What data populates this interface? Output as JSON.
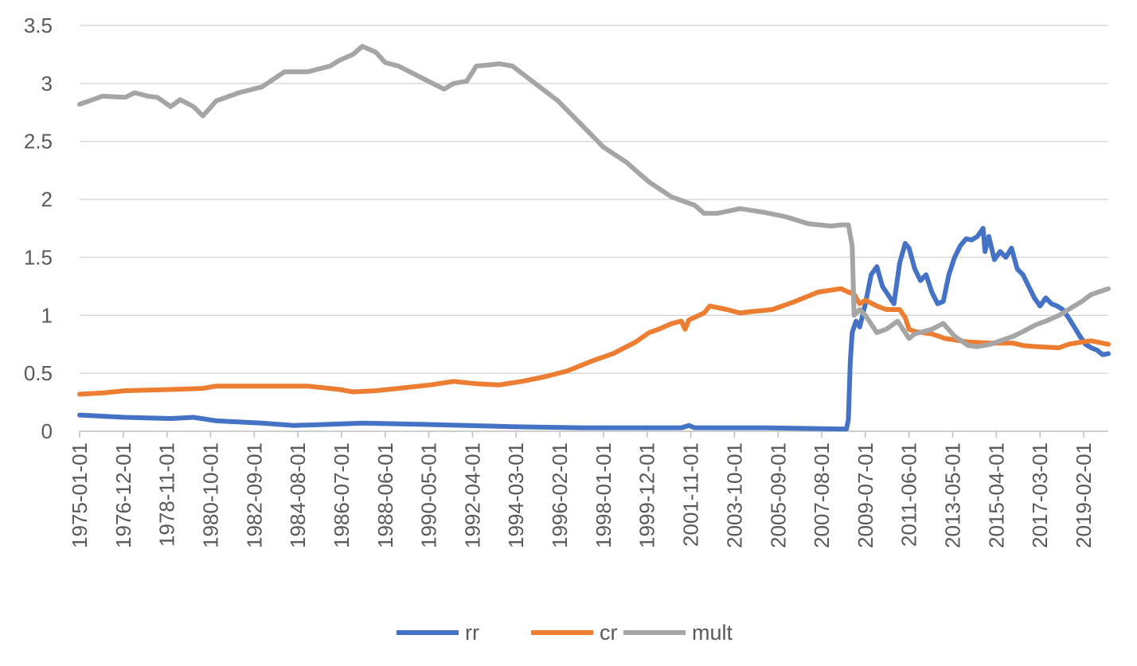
{
  "chart_data": {
    "type": "line",
    "title": "",
    "xlabel": "",
    "ylabel": "",
    "ylim": [
      0,
      3.5
    ],
    "xlim": [
      "1975-01-01",
      "2020-03-01"
    ],
    "y_ticks": [
      "0",
      "0.5",
      "1",
      "1.5",
      "2",
      "2.5",
      "3",
      "3.5"
    ],
    "x_ticks": [
      "1975-01-01",
      "1976-12-01",
      "1978-11-01",
      "1980-10-01",
      "1982-09-01",
      "1984-08-01",
      "1986-07-01",
      "1988-06-01",
      "1990-05-01",
      "1992-04-01",
      "1994-03-01",
      "1996-02-01",
      "1998-01-01",
      "1999-12-01",
      "2001-11-01",
      "2003-10-01",
      "2005-09-01",
      "2007-08-01",
      "2009-07-01",
      "2011-06-01",
      "2013-05-01",
      "2015-04-01",
      "2017-03-01",
      "2019-02-01"
    ],
    "grid": "horizontal",
    "legend_position": "bottom",
    "series": [
      {
        "name": "rr",
        "color": "#4472C4",
        "points": [
          [
            "1975-01-01",
            0.14
          ],
          [
            "1977-01-01",
            0.12
          ],
          [
            "1979-01-01",
            0.11
          ],
          [
            "1980-01-01",
            0.12
          ],
          [
            "1981-01-01",
            0.09
          ],
          [
            "1983-01-01",
            0.07
          ],
          [
            "1984-06-01",
            0.05
          ],
          [
            "1986-01-01",
            0.06
          ],
          [
            "1987-06-01",
            0.07
          ],
          [
            "1990-01-01",
            0.06
          ],
          [
            "1992-01-01",
            0.05
          ],
          [
            "1994-01-01",
            0.04
          ],
          [
            "1997-01-01",
            0.03
          ],
          [
            "2001-06-01",
            0.03
          ],
          [
            "2001-10-01",
            0.05
          ],
          [
            "2002-01-01",
            0.03
          ],
          [
            "2005-01-01",
            0.03
          ],
          [
            "2008-06-01",
            0.02
          ],
          [
            "2008-09-01",
            0.02
          ],
          [
            "2008-10-01",
            0.1
          ],
          [
            "2008-11-01",
            0.6
          ],
          [
            "2008-12-01",
            0.85
          ],
          [
            "2009-02-01",
            0.95
          ],
          [
            "2009-04-01",
            0.9
          ],
          [
            "2009-07-01",
            1.1
          ],
          [
            "2009-10-01",
            1.35
          ],
          [
            "2010-01-01",
            1.42
          ],
          [
            "2010-04-01",
            1.25
          ],
          [
            "2010-08-01",
            1.15
          ],
          [
            "2010-10-01",
            1.1
          ],
          [
            "2011-01-01",
            1.45
          ],
          [
            "2011-04-01",
            1.62
          ],
          [
            "2011-06-01",
            1.58
          ],
          [
            "2011-09-01",
            1.4
          ],
          [
            "2011-12-01",
            1.3
          ],
          [
            "2012-03-01",
            1.35
          ],
          [
            "2012-06-01",
            1.2
          ],
          [
            "2012-09-01",
            1.1
          ],
          [
            "2012-12-01",
            1.12
          ],
          [
            "2013-03-01",
            1.35
          ],
          [
            "2013-06-01",
            1.5
          ],
          [
            "2013-09-01",
            1.6
          ],
          [
            "2013-12-01",
            1.66
          ],
          [
            "2014-03-01",
            1.65
          ],
          [
            "2014-06-01",
            1.68
          ],
          [
            "2014-09-01",
            1.75
          ],
          [
            "2014-10-01",
            1.55
          ],
          [
            "2014-12-01",
            1.68
          ],
          [
            "2015-03-01",
            1.48
          ],
          [
            "2015-06-01",
            1.55
          ],
          [
            "2015-09-01",
            1.5
          ],
          [
            "2015-12-01",
            1.58
          ],
          [
            "2016-03-01",
            1.4
          ],
          [
            "2016-06-01",
            1.35
          ],
          [
            "2016-09-01",
            1.25
          ],
          [
            "2016-12-01",
            1.15
          ],
          [
            "2017-03-01",
            1.08
          ],
          [
            "2017-06-01",
            1.15
          ],
          [
            "2017-09-01",
            1.1
          ],
          [
            "2017-12-01",
            1.08
          ],
          [
            "2018-03-01",
            1.05
          ],
          [
            "2018-06-01",
            0.98
          ],
          [
            "2018-09-01",
            0.9
          ],
          [
            "2018-12-01",
            0.82
          ],
          [
            "2019-03-01",
            0.75
          ],
          [
            "2019-06-01",
            0.72
          ],
          [
            "2019-09-01",
            0.7
          ],
          [
            "2019-12-01",
            0.66
          ],
          [
            "2020-03-01",
            0.67
          ]
        ]
      },
      {
        "name": "cr",
        "color": "#ED7D31",
        "points": [
          [
            "1975-01-01",
            0.32
          ],
          [
            "1976-01-01",
            0.33
          ],
          [
            "1977-01-01",
            0.35
          ],
          [
            "1979-01-01",
            0.36
          ],
          [
            "1980-06-01",
            0.37
          ],
          [
            "1981-01-01",
            0.39
          ],
          [
            "1983-01-01",
            0.39
          ],
          [
            "1985-01-01",
            0.39
          ],
          [
            "1986-06-01",
            0.36
          ],
          [
            "1987-01-01",
            0.34
          ],
          [
            "1988-01-01",
            0.35
          ],
          [
            "1989-01-01",
            0.37
          ],
          [
            "1990-06-01",
            0.4
          ],
          [
            "1991-06-01",
            0.43
          ],
          [
            "1992-06-01",
            0.41
          ],
          [
            "1993-06-01",
            0.4
          ],
          [
            "1994-06-01",
            0.43
          ],
          [
            "1995-06-01",
            0.47
          ],
          [
            "1996-06-01",
            0.52
          ],
          [
            "1997-06-01",
            0.6
          ],
          [
            "1998-06-01",
            0.67
          ],
          [
            "1999-06-01",
            0.77
          ],
          [
            "2000-01-01",
            0.85
          ],
          [
            "2000-06-01",
            0.88
          ],
          [
            "2001-01-01",
            0.93
          ],
          [
            "2001-06-01",
            0.95
          ],
          [
            "2001-08-01",
            0.88
          ],
          [
            "2001-10-01",
            0.96
          ],
          [
            "2002-06-01",
            1.02
          ],
          [
            "2002-09-01",
            1.08
          ],
          [
            "2003-06-01",
            1.05
          ],
          [
            "2004-01-01",
            1.02
          ],
          [
            "2004-06-01",
            1.03
          ],
          [
            "2005-06-01",
            1.05
          ],
          [
            "2006-06-01",
            1.12
          ],
          [
            "2007-06-01",
            1.2
          ],
          [
            "2008-06-01",
            1.23
          ],
          [
            "2009-01-01",
            1.18
          ],
          [
            "2009-04-01",
            1.1
          ],
          [
            "2009-07-01",
            1.13
          ],
          [
            "2010-01-01",
            1.08
          ],
          [
            "2010-06-01",
            1.05
          ],
          [
            "2011-01-01",
            1.05
          ],
          [
            "2011-04-01",
            0.98
          ],
          [
            "2011-06-01",
            0.88
          ],
          [
            "2011-09-01",
            0.86
          ],
          [
            "2012-06-01",
            0.84
          ],
          [
            "2013-01-01",
            0.8
          ],
          [
            "2014-01-01",
            0.77
          ],
          [
            "2015-01-01",
            0.76
          ],
          [
            "2016-01-01",
            0.76
          ],
          [
            "2016-06-01",
            0.74
          ],
          [
            "2017-01-01",
            0.73
          ],
          [
            "2018-01-01",
            0.72
          ],
          [
            "2018-06-01",
            0.75
          ],
          [
            "2019-01-01",
            0.77
          ],
          [
            "2019-06-01",
            0.78
          ],
          [
            "2020-03-01",
            0.75
          ]
        ]
      },
      {
        "name": "mult",
        "color": "#A5A5A5",
        "points": [
          [
            "1975-01-01",
            2.82
          ],
          [
            "1976-01-01",
            2.89
          ],
          [
            "1977-01-01",
            2.88
          ],
          [
            "1977-06-01",
            2.92
          ],
          [
            "1978-01-01",
            2.89
          ],
          [
            "1978-06-01",
            2.88
          ],
          [
            "1979-01-01",
            2.8
          ],
          [
            "1979-06-01",
            2.86
          ],
          [
            "1980-01-01",
            2.8
          ],
          [
            "1980-06-01",
            2.72
          ],
          [
            "1981-01-01",
            2.85
          ],
          [
            "1982-01-01",
            2.92
          ],
          [
            "1983-01-01",
            2.97
          ],
          [
            "1984-01-01",
            3.1
          ],
          [
            "1985-01-01",
            3.1
          ],
          [
            "1986-01-01",
            3.15
          ],
          [
            "1986-06-01",
            3.2
          ],
          [
            "1987-01-01",
            3.25
          ],
          [
            "1987-06-01",
            3.32
          ],
          [
            "1988-01-01",
            3.27
          ],
          [
            "1988-06-01",
            3.18
          ],
          [
            "1989-01-01",
            3.15
          ],
          [
            "1990-01-01",
            3.05
          ],
          [
            "1991-01-01",
            2.95
          ],
          [
            "1991-06-01",
            3.0
          ],
          [
            "1992-01-01",
            3.02
          ],
          [
            "1992-06-01",
            3.15
          ],
          [
            "1993-01-01",
            3.16
          ],
          [
            "1993-06-01",
            3.17
          ],
          [
            "1994-01-01",
            3.15
          ],
          [
            "1995-01-01",
            3.0
          ],
          [
            "1996-01-01",
            2.85
          ],
          [
            "1997-01-01",
            2.65
          ],
          [
            "1998-01-01",
            2.45
          ],
          [
            "1999-01-01",
            2.32
          ],
          [
            "2000-01-01",
            2.15
          ],
          [
            "2001-01-01",
            2.02
          ],
          [
            "2002-01-01",
            1.95
          ],
          [
            "2002-06-01",
            1.88
          ],
          [
            "2003-01-01",
            1.88
          ],
          [
            "2004-01-01",
            1.92
          ],
          [
            "2005-01-01",
            1.89
          ],
          [
            "2006-01-01",
            1.85
          ],
          [
            "2007-01-01",
            1.79
          ],
          [
            "2008-01-01",
            1.77
          ],
          [
            "2008-06-01",
            1.78
          ],
          [
            "2008-10-01",
            1.78
          ],
          [
            "2008-12-01",
            1.6
          ],
          [
            "2009-01-01",
            1.0
          ],
          [
            "2009-04-01",
            1.05
          ],
          [
            "2009-07-01",
            1.0
          ],
          [
            "2010-01-01",
            0.85
          ],
          [
            "2010-06-01",
            0.88
          ],
          [
            "2010-12-01",
            0.95
          ],
          [
            "2011-06-01",
            0.8
          ],
          [
            "2011-09-01",
            0.84
          ],
          [
            "2012-06-01",
            0.88
          ],
          [
            "2012-12-01",
            0.93
          ],
          [
            "2013-06-01",
            0.82
          ],
          [
            "2014-01-01",
            0.74
          ],
          [
            "2014-06-01",
            0.73
          ],
          [
            "2015-01-01",
            0.75
          ],
          [
            "2015-06-01",
            0.78
          ],
          [
            "2016-01-01",
            0.82
          ],
          [
            "2016-06-01",
            0.86
          ],
          [
            "2017-01-01",
            0.92
          ],
          [
            "2017-06-01",
            0.95
          ],
          [
            "2018-01-01",
            1.0
          ],
          [
            "2018-06-01",
            1.05
          ],
          [
            "2019-01-01",
            1.12
          ],
          [
            "2019-06-01",
            1.18
          ],
          [
            "2020-03-01",
            1.23
          ]
        ]
      }
    ]
  }
}
